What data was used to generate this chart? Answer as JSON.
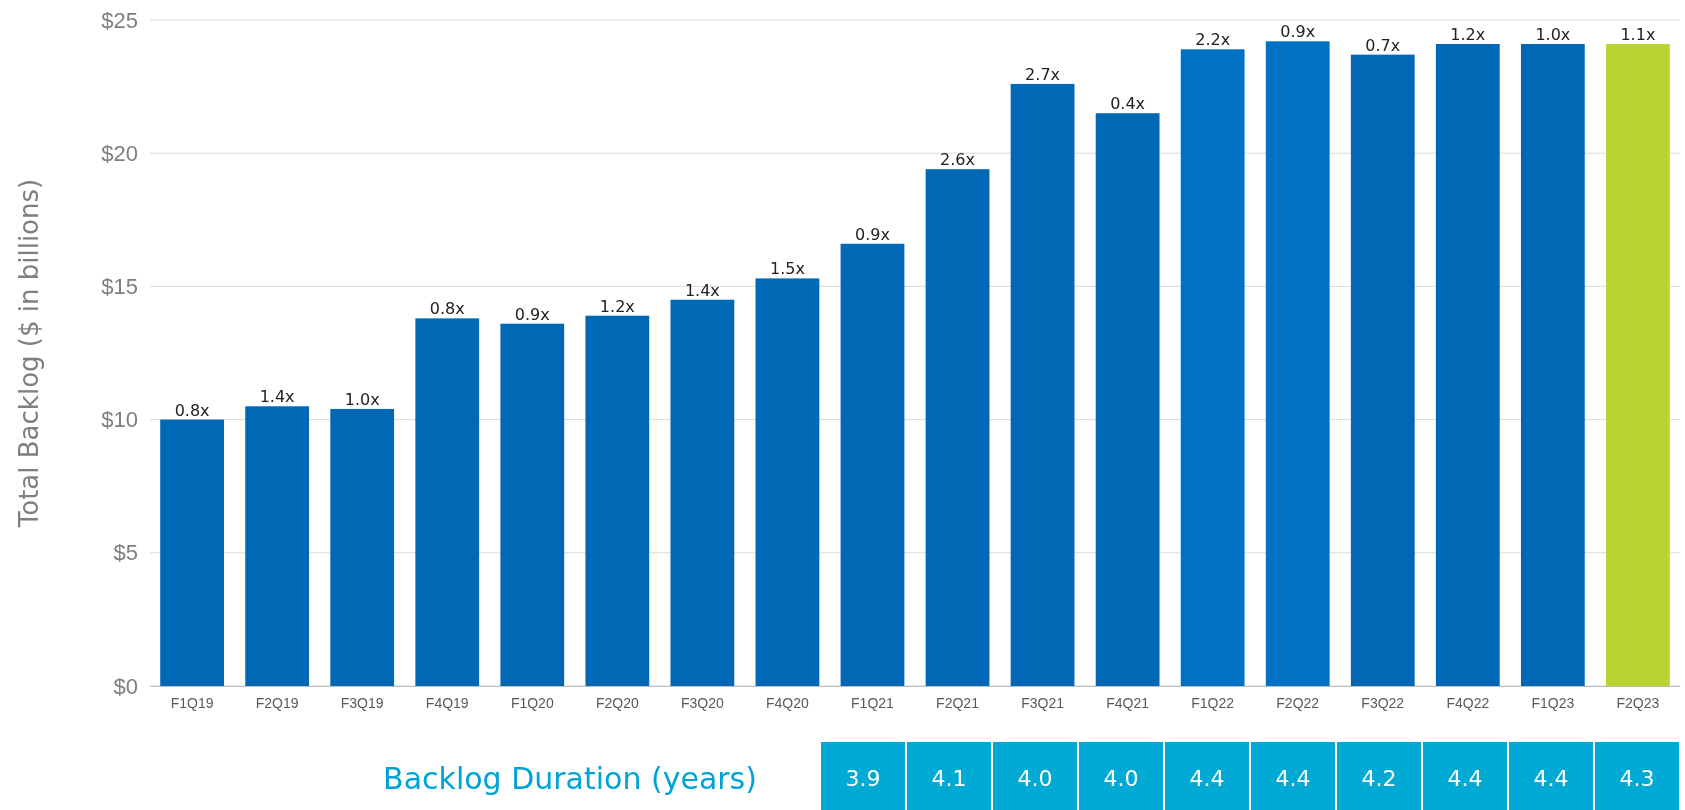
{
  "chart_data": {
    "type": "bar",
    "ylabel": "Total Backlog ($ in billions)",
    "categories": [
      "F1Q19",
      "F2Q19",
      "F3Q19",
      "F4Q19",
      "F1Q20",
      "F2Q20",
      "F3Q20",
      "F4Q20",
      "F1Q21",
      "F2Q21",
      "F3Q21",
      "F4Q21",
      "F1Q22",
      "F2Q22",
      "F3Q22",
      "F4Q22",
      "F1Q23",
      "F2Q23"
    ],
    "values": [
      10.0,
      10.5,
      10.4,
      13.8,
      13.6,
      13.9,
      14.5,
      15.3,
      16.6,
      19.4,
      22.6,
      21.5,
      23.9,
      24.2,
      23.7,
      24.1,
      24.1,
      24.1
    ],
    "colors": [
      "#0068b5",
      "#0068b5",
      "#0068b5",
      "#0068b5",
      "#0068b5",
      "#0068b5",
      "#0068b5",
      "#0068b5",
      "#0068b5",
      "#0068b5",
      "#0068b5",
      "#0068b5",
      "#0071c5",
      "#0071c5",
      "#0068b5",
      "#0068b5",
      "#0068b5",
      "#b8d433"
    ],
    "ylim": [
      0,
      25
    ],
    "yticks": [
      {
        "value": 0,
        "label": "$0"
      },
      {
        "value": 5,
        "label": "$5"
      },
      {
        "value": 10,
        "label": "$10"
      },
      {
        "value": 15,
        "label": "$15"
      },
      {
        "value": 20,
        "label": "$20"
      },
      {
        "value": 25,
        "label": "$25"
      }
    ],
    "grid": "y",
    "annotations": [
      {
        "text": "0.8x",
        "x": "F1Q19",
        "y": 10.0
      },
      {
        "text": "1.4x",
        "x": "F2Q19",
        "y": 10.5
      },
      {
        "text": "1.0x",
        "x": "F3Q19",
        "y": 10.4
      },
      {
        "text": "0.8x",
        "x": "F4Q19",
        "y": 13.8
      },
      {
        "text": "0.9x",
        "x": "F1Q20",
        "y": 13.6
      },
      {
        "text": "1.2x",
        "x": "F2Q20",
        "y": 13.9
      },
      {
        "text": "1.4x",
        "x": "F3Q20",
        "y": 14.5
      },
      {
        "text": "1.5x",
        "x": "F4Q20",
        "y": 15.3
      },
      {
        "text": "0.9x",
        "x": "F1Q21",
        "y": 16.6
      },
      {
        "text": "2.6x",
        "x": "F2Q21",
        "y": 19.4
      },
      {
        "text": "2.7x",
        "x": "F3Q21",
        "y": 22.6
      },
      {
        "text": "0.4x",
        "x": "F4Q21",
        "y": 21.5
      },
      {
        "text": "2.2x",
        "x": "F1Q22",
        "y": 23.9
      },
      {
        "text": "0.9x",
        "x": "F2Q22",
        "y": 24.2
      },
      {
        "text": "0.7x",
        "x": "F3Q22",
        "y": 23.7
      },
      {
        "text": "1.2x",
        "x": "F4Q22",
        "y": 24.1
      },
      {
        "text": "1.0x",
        "x": "F1Q23",
        "y": 24.1
      },
      {
        "text": "1.1x",
        "x": "F2Q23",
        "y": 24.1
      },
      "Backlog Duration (years)",
      "3.9",
      "4.1",
      "4.0",
      "4.0",
      "4.4",
      "4.4",
      "4.2",
      "4.4",
      "4.4",
      "4.3"
    ]
  }
}
